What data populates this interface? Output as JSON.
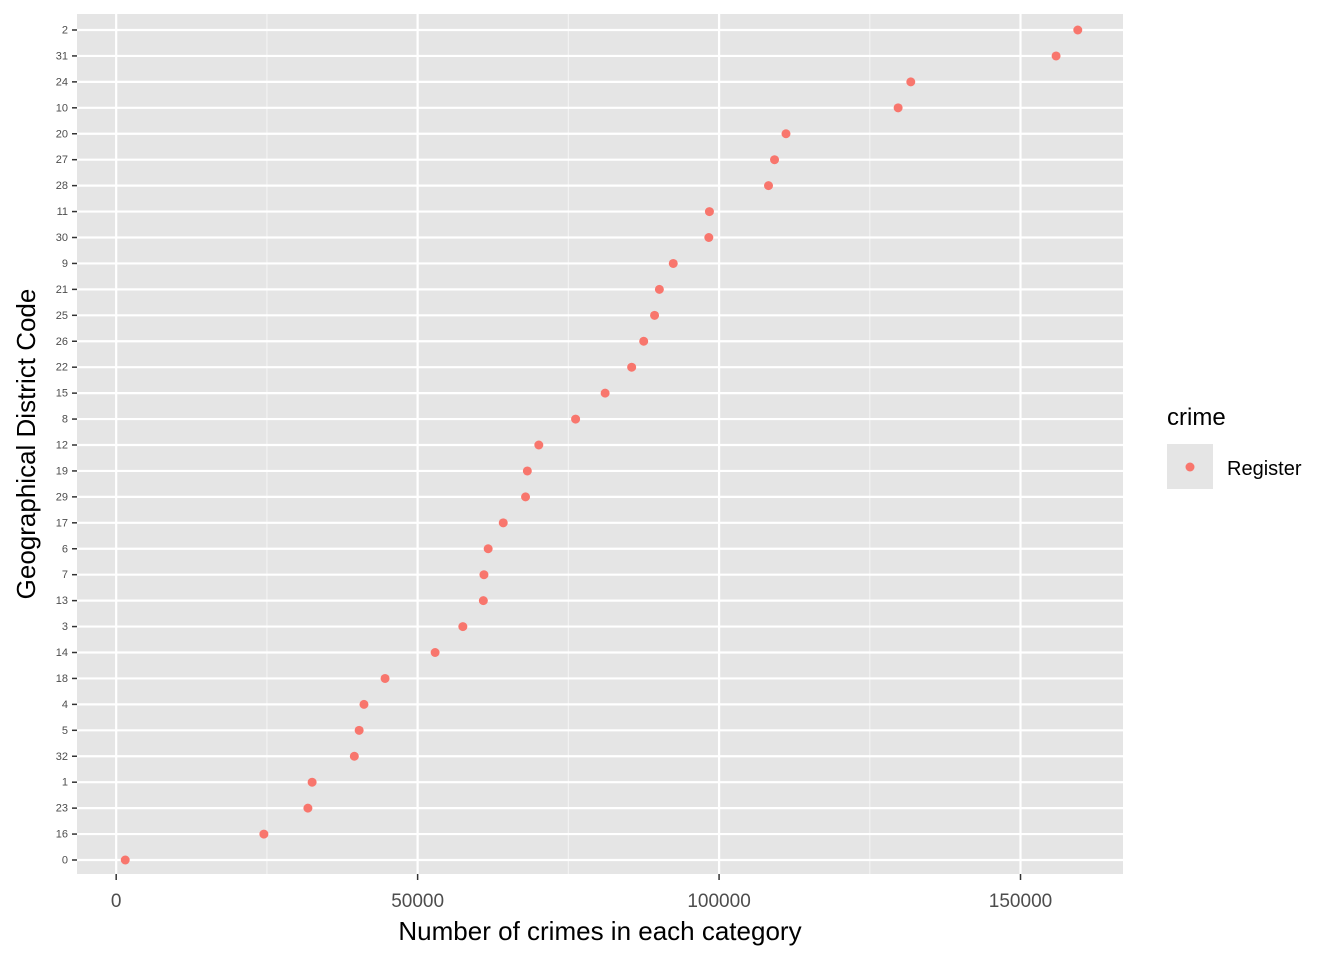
{
  "chart_data": {
    "type": "scatter",
    "title": "",
    "xlabel": "Number of crimes in each category",
    "ylabel": "Geographical District Code",
    "xlim": [
      -6500,
      167000
    ],
    "x_ticks": [
      0,
      50000,
      100000,
      150000
    ],
    "x_tick_labels": [
      "0",
      "50000",
      "100000",
      "150000"
    ],
    "grid": true,
    "legend": {
      "title": "crime",
      "position": "right"
    },
    "point_color": "#F8766D",
    "panel_color": "#E5E5E5",
    "series": [
      {
        "name": "Register",
        "categories": [
          "0",
          "16",
          "23",
          "1",
          "32",
          "5",
          "4",
          "18",
          "14",
          "3",
          "13",
          "7",
          "6",
          "17",
          "29",
          "19",
          "12",
          "8",
          "15",
          "22",
          "26",
          "25",
          "21",
          "9",
          "30",
          "11",
          "28",
          "27",
          "20",
          "10",
          "24",
          "31",
          "2"
        ],
        "values": [
          1500,
          24500,
          31800,
          32500,
          39500,
          40300,
          41100,
          44600,
          52900,
          57500,
          60900,
          61000,
          61700,
          64200,
          67900,
          68200,
          70100,
          76200,
          81100,
          85500,
          87500,
          89300,
          90100,
          92400,
          98300,
          98400,
          108200,
          109200,
          111100,
          129700,
          131800,
          155900,
          159500
        ]
      }
    ]
  }
}
